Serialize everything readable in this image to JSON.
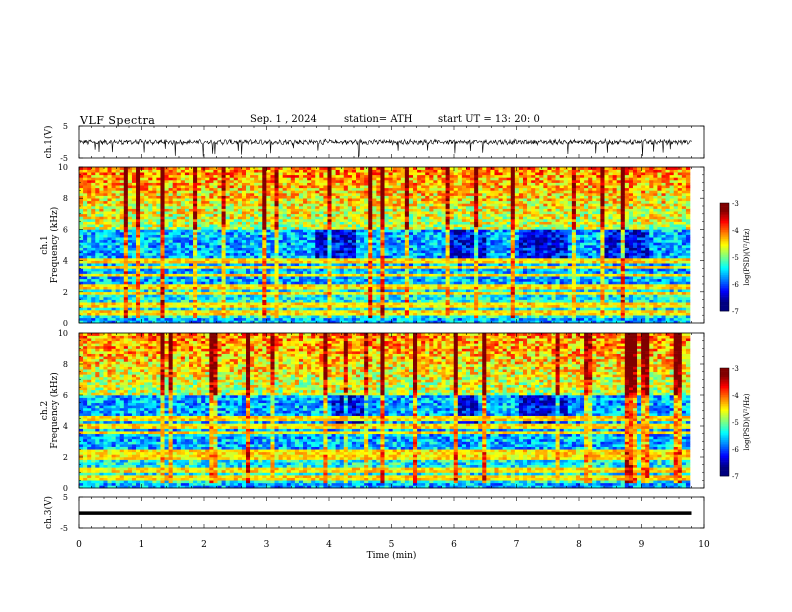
{
  "header": {
    "title": "VLF  Spectra",
    "date": "Sep. 1  , 2024",
    "station": "station= ATH",
    "start": "start  UT  =    13: 20: 0"
  },
  "chart_data": [
    {
      "type": "line",
      "title": "",
      "ylabel": "ch.1(V)",
      "ylim": [
        -5,
        5
      ],
      "y_ticks": [
        "5",
        "-5"
      ],
      "xlim": [
        0,
        10
      ],
      "baseline": 0,
      "color": "#000000"
    },
    {
      "type": "heatmap",
      "ylabel_channel": "ch.1",
      "ylabel": "Frequency (kHz)",
      "ylim": [
        0,
        10
      ],
      "y_ticks": [
        "0",
        "2",
        "4",
        "6",
        "8",
        "10"
      ],
      "xlim": [
        0,
        10
      ],
      "colorbar": {
        "label": "log(PSD)(V²/Hz)",
        "range": [
          -7,
          -3
        ],
        "ticks": [
          "-3",
          "-4",
          "-5",
          "-6",
          "-7"
        ]
      },
      "bands_khz": [
        0.7,
        1.2,
        1.9,
        2.3,
        3.1,
        3.6,
        4.0
      ]
    },
    {
      "type": "heatmap",
      "ylabel_channel": "ch.2",
      "ylabel": "Frequency (kHz)",
      "ylim": [
        0,
        10
      ],
      "y_ticks": [
        "0",
        "2",
        "4",
        "6",
        "8",
        "10"
      ],
      "xlim": [
        0,
        10
      ],
      "colorbar": {
        "label": "log(PSD)(V²/Hz)",
        "range": [
          -7,
          -3
        ],
        "ticks": [
          "-3",
          "-4",
          "-5",
          "-6",
          "-7"
        ]
      },
      "bands_khz": [
        0.7,
        1.2,
        1.9,
        2.1,
        2.3,
        3.6,
        4.0,
        4.5
      ]
    },
    {
      "type": "line",
      "ylabel": "ch.3(V)",
      "ylim": [
        -5,
        5
      ],
      "y_ticks": [
        "5",
        "-5"
      ],
      "xlim": [
        0,
        10
      ],
      "x_ticks": [
        "0",
        "1",
        "2",
        "3",
        "4",
        "5",
        "6",
        "7",
        "8",
        "9",
        "10"
      ],
      "xlabel": "Time  (min)",
      "level": -0.2,
      "data_end_min": 9.8
    }
  ]
}
